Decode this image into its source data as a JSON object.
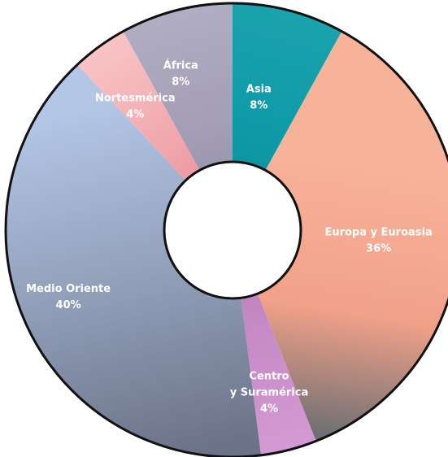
{
  "chart_data": {
    "type": "pie",
    "donut": true,
    "start_angle_deg": 0,
    "direction": "clockwise",
    "slices": [
      {
        "label": [
          "Asia"
        ],
        "percent_text": "8%",
        "value": 8,
        "color": "#0f9aa8",
        "color_light": "#1aa3ad",
        "color_dark": "#0c8a95"
      },
      {
        "label": [
          "Europa y Euroasia"
        ],
        "percent_text": "36%",
        "value": 36,
        "color": "#f2a189",
        "color_light": "#f7b39a",
        "color_dark": "#6f6f73"
      },
      {
        "label": [
          "Centro",
          "y Suramérica"
        ],
        "percent_text": "4%",
        "value": 4,
        "color": "#c68ac6",
        "color_light": "#d39ad3",
        "color_dark": "#b57bb8"
      },
      {
        "label": [
          "Medio Oriente"
        ],
        "percent_text": "40%",
        "value": 40,
        "color": "#8e9bb4",
        "color_light": "#b3c6e6",
        "color_dark": "#6b7388"
      },
      {
        "label": [
          "Nortesmérica"
        ],
        "percent_text": "4%",
        "value": 4,
        "color": "#f0a6ac",
        "color_light": "#f8c4c6",
        "color_dark": "#e5878f"
      },
      {
        "label": [
          "África"
        ],
        "percent_text": "8%",
        "value": 8,
        "color": "#a39db5",
        "color_light": "#b0aec2",
        "color_dark": "#8f8aa2"
      }
    ]
  }
}
